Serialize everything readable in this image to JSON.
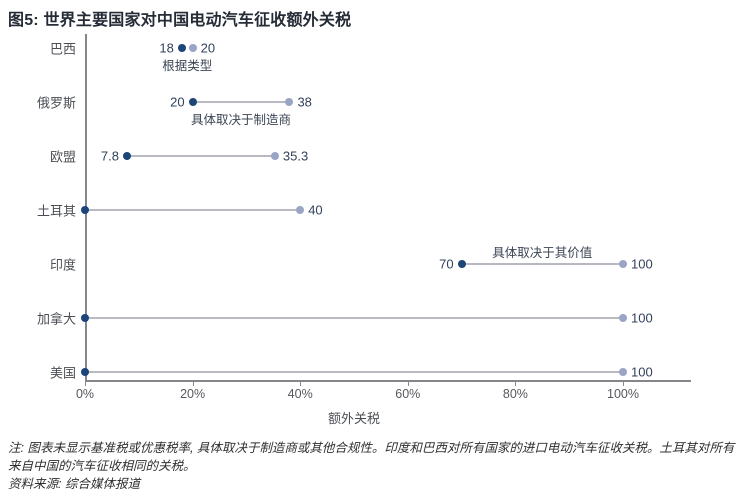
{
  "title": "图5: 世界主要国家对中国电动汽车征收额外关税",
  "chart_data": {
    "type": "dumbbell",
    "title": "图5: 世界主要国家对中国电动汽车征收额外关税",
    "xlabel": "额外关税",
    "xlim": [
      0,
      112
    ],
    "x_ticks": [
      {
        "label": "0%",
        "value": 0
      },
      {
        "label": "20%",
        "value": 20
      },
      {
        "label": "40%",
        "value": 40
      },
      {
        "label": "60%",
        "value": 60
      },
      {
        "label": "80%",
        "value": 80
      },
      {
        "label": "100%",
        "value": 100
      }
    ],
    "colors": {
      "min_dot": "#1c4679",
      "max_dot": "#9aa5c6",
      "connector": "#b9bac1",
      "value_label": "#33415c",
      "annotation": "#3d4656",
      "axis": "#85868b"
    },
    "rows": [
      {
        "category": "巴西",
        "min": 18,
        "max": 20,
        "min_label": "18",
        "max_label": "20",
        "annotation": "根据类型",
        "annotation_pos": "below"
      },
      {
        "category": "俄罗斯",
        "min": 20,
        "max": 38,
        "min_label": "20",
        "max_label": "38",
        "annotation": "具体取决于制造商",
        "annotation_pos": "below"
      },
      {
        "category": "欧盟",
        "min": 7.8,
        "max": 35.3,
        "min_label": "7.8",
        "max_label": "35.3",
        "annotation": "",
        "annotation_pos": "none"
      },
      {
        "category": "土耳其",
        "min": 0,
        "max": 40,
        "min_label": "",
        "max_label": "40",
        "annotation": "",
        "annotation_pos": "none"
      },
      {
        "category": "印度",
        "min": 70,
        "max": 100,
        "min_label": "70",
        "max_label": "100",
        "annotation": "具体取决于其价值",
        "annotation_pos": "above"
      },
      {
        "category": "加拿大",
        "min": 0,
        "max": 100,
        "min_label": "",
        "max_label": "100",
        "annotation": "",
        "annotation_pos": "none"
      },
      {
        "category": "美国",
        "min": 0,
        "max": 100,
        "min_label": "",
        "max_label": "100",
        "annotation": "",
        "annotation_pos": "none"
      }
    ]
  },
  "notes": {
    "note": "注: 图表未显示基准税或优惠税率, 具体取决于制造商或其他合规性。印度和巴西对所有国家的进口电动汽车征收关税。土耳其对所有来自中国的汽车征收相同的关税。",
    "source": "资料来源: 综合媒体报道"
  }
}
